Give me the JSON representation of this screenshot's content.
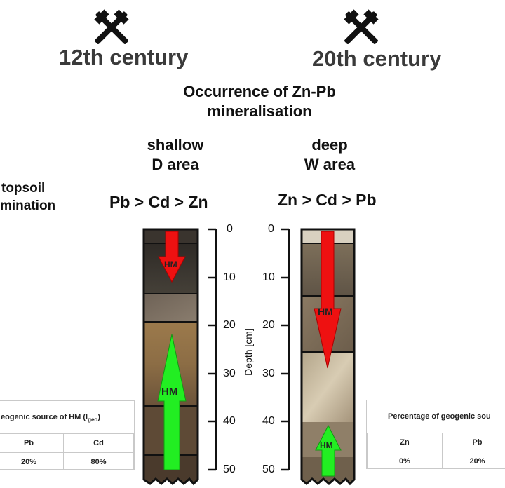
{
  "left_era": {
    "title": "12th century",
    "icon": "hammer-pick-icon"
  },
  "right_era": {
    "title": "20th century",
    "icon": "hammer-pick-icon"
  },
  "occurrence": {
    "line1": "Occurrence  of Zn-Pb",
    "line2": "mineralisation"
  },
  "shallow": {
    "line1": "shallow",
    "line2": "D area"
  },
  "deep": {
    "line1": "deep",
    "line2": "W area"
  },
  "side_label": {
    "line1": "topsoil",
    "line2": "mination"
  },
  "ratio_left": "Pb > Cd > Zn",
  "ratio_right": "Zn > Cd > Pb",
  "depth_axis": {
    "label": "Depth [cm]",
    "ticks": [
      "0",
      "10",
      "20",
      "30",
      "40",
      "50"
    ]
  },
  "arrows": {
    "left_down": "HM",
    "left_up": "HM",
    "right_down": "HM",
    "right_up": "HM"
  },
  "table_left": {
    "title": "eogenic source of HM (I",
    "title_sub": "geo",
    "title_end": ")",
    "headers": [
      "Pb",
      "Cd"
    ],
    "values": [
      "20%",
      "80%"
    ]
  },
  "table_right": {
    "title": "Percentage of geogenic sou",
    "headers": [
      "Zn",
      "Pb"
    ],
    "values": [
      "0%",
      "20%"
    ]
  },
  "colors": {
    "red_arrow": "#ee1111",
    "green_arrow": "#22ee22"
  }
}
